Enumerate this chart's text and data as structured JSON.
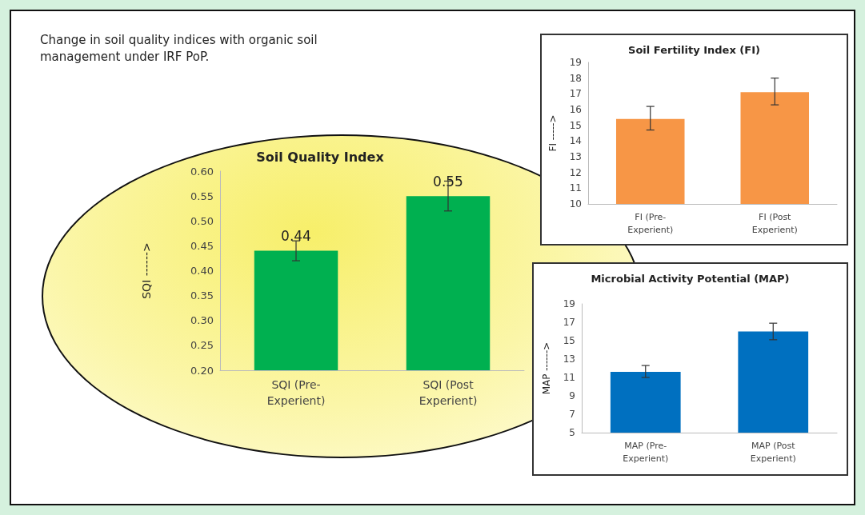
{
  "chart_data": [
    {
      "type": "bar",
      "title": "Soil Quality Index",
      "annotations": [
        "Change in soil quality indices with organic soil management under IRF PoP."
      ],
      "ylabel": "SQI ------>",
      "categories": [
        "SQI (Pre-Experient)",
        "SQI (Post Experient)"
      ],
      "values": [
        0.44,
        0.55
      ],
      "errors": [
        [
          0.42,
          0.46
        ],
        [
          0.52,
          0.58
        ]
      ],
      "color": "#00b050",
      "data_labels": true,
      "ylim": [
        0.2,
        0.6
      ],
      "yticks": [
        {
          "value": 0.2,
          "label": "0.20"
        },
        {
          "value": 0.25,
          "label": "0.25"
        },
        {
          "value": 0.3,
          "label": "0.30"
        },
        {
          "value": 0.35,
          "label": "0.35"
        },
        {
          "value": 0.4,
          "label": "0.40"
        },
        {
          "value": 0.45,
          "label": "0.45"
        },
        {
          "value": 0.5,
          "label": "0.50"
        },
        {
          "value": 0.55,
          "label": "0.55"
        },
        {
          "value": 0.6,
          "label": "0.60"
        }
      ],
      "grid": false
    },
    {
      "type": "bar",
      "title": "Soil Fertility Index (FI)",
      "ylabel": "FI ----->",
      "categories": [
        "FI (Pre-Experient)",
        "FI (Post Experient)"
      ],
      "values": [
        15.4,
        17.1
      ],
      "errors": [
        [
          14.7,
          16.2
        ],
        [
          16.3,
          18.0
        ]
      ],
      "color": "#f79646",
      "ylim": [
        10,
        19
      ],
      "yticks": [
        10,
        11,
        12,
        13,
        14,
        15,
        16,
        17,
        18,
        19
      ],
      "grid": false
    },
    {
      "type": "bar",
      "title": "Microbial Activity Potential (MAP)",
      "ylabel": "MAP ------>",
      "categories": [
        "MAP (Pre-Experient)",
        "MAP (Post Experient)"
      ],
      "values": [
        11.6,
        16.0
      ],
      "errors": [
        [
          11.0,
          12.3
        ],
        [
          15.1,
          16.9
        ]
      ],
      "color": "#0070c0",
      "ylim": [
        5,
        19
      ],
      "yticks": [
        5,
        7,
        9,
        11,
        13,
        15,
        17,
        19
      ],
      "grid": false
    }
  ]
}
